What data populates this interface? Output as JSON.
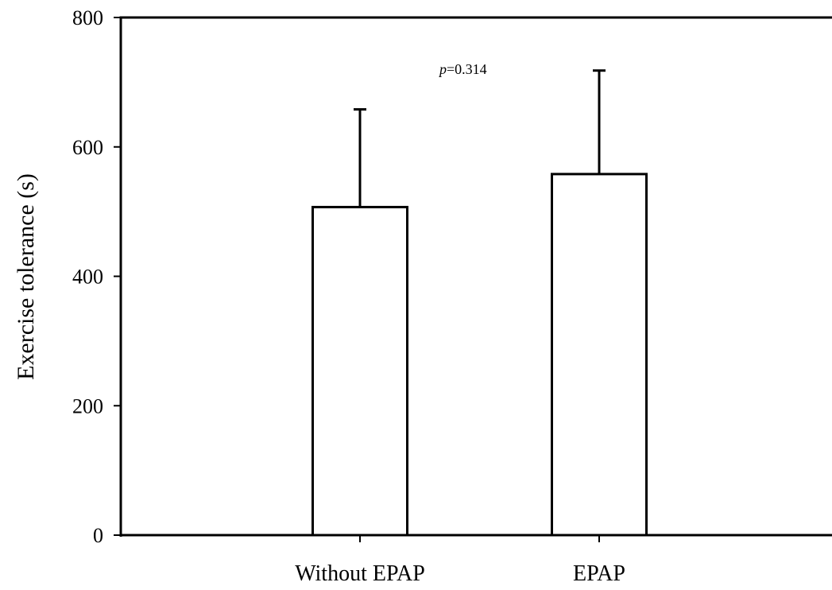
{
  "chart_data": {
    "type": "bar",
    "title": "",
    "xlabel": "",
    "ylabel": "Exercise tolerance (s)",
    "categories": [
      "Without EPAP",
      "EPAP"
    ],
    "values": [
      507,
      558
    ],
    "error_upper": [
      658,
      718
    ],
    "ylim": [
      0,
      800
    ],
    "yticks": [
      "0",
      "200",
      "400",
      "600",
      "800"
    ],
    "grid": false,
    "legend": "none",
    "bar_fill": "#ffffff",
    "bar_stroke": "#000000",
    "annotation": {
      "prefix": "p",
      "text": "=0.314",
      "data_y": 700
    }
  }
}
